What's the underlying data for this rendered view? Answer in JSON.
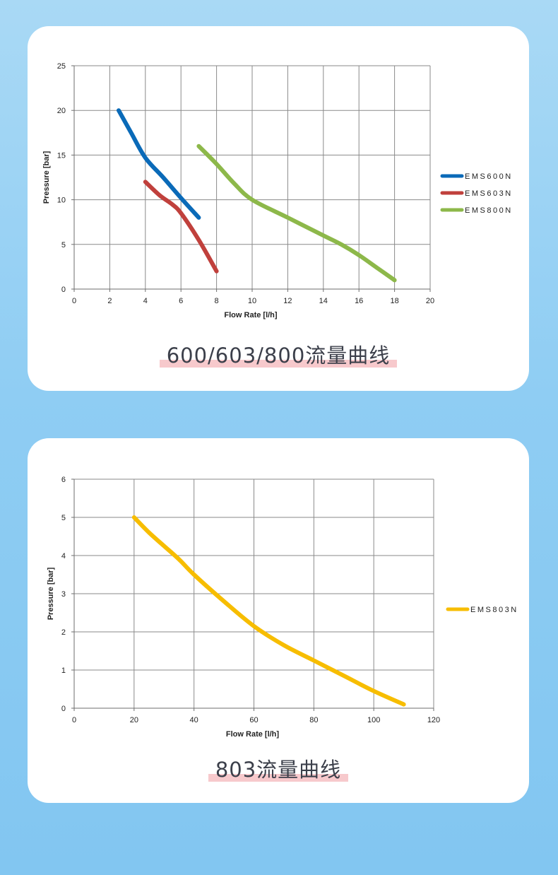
{
  "charts": [
    {
      "caption": "600/603/800流量曲线",
      "colors": {
        "EMS600N": "#0a6ab8",
        "EMS603N": "#c0403c",
        "EMS800N": "#8db84a"
      }
    },
    {
      "caption": "803流量曲线",
      "colors": {
        "EMS803N": "#f7bd00"
      }
    }
  ],
  "chart_data": [
    {
      "type": "line",
      "xlabel": "Flow Rate [l/h]",
      "ylabel": "Pressure [bar]",
      "xlim": [
        0,
        20
      ],
      "ylim": [
        0,
        25
      ],
      "xticks": [
        0,
        2,
        4,
        6,
        8,
        10,
        12,
        14,
        16,
        18,
        20
      ],
      "yticks": [
        0,
        5,
        10,
        15,
        20,
        25
      ],
      "grid": true,
      "legend_position": "right",
      "series": [
        {
          "name": "EMS600N",
          "x": [
            2.5,
            3.2,
            4,
            5,
            6,
            7
          ],
          "y": [
            20,
            17.5,
            14.7,
            12.5,
            10.2,
            8
          ]
        },
        {
          "name": "EMS603N",
          "x": [
            4,
            4.8,
            5.5,
            6,
            7,
            8
          ],
          "y": [
            12,
            10.5,
            9.5,
            8.5,
            5.5,
            2
          ]
        },
        {
          "name": "EMS800N",
          "x": [
            7,
            8,
            9,
            10,
            12,
            14,
            15,
            16,
            17,
            18
          ],
          "y": [
            16,
            14,
            11.8,
            10,
            8,
            6,
            5,
            3.8,
            2.4,
            1
          ]
        }
      ]
    },
    {
      "type": "line",
      "xlabel": "Flow Rate [l/h]",
      "ylabel": "Pressure [bar]",
      "xlim": [
        0,
        120
      ],
      "ylim": [
        0,
        6
      ],
      "xticks": [
        0,
        20,
        40,
        60,
        80,
        100,
        120
      ],
      "yticks": [
        0,
        1,
        2,
        3,
        4,
        5,
        6
      ],
      "grid": true,
      "legend_position": "right",
      "series": [
        {
          "name": "EMS803N",
          "x": [
            20,
            25,
            30,
            35,
            40,
            50,
            60,
            70,
            80,
            90,
            100,
            110
          ],
          "y": [
            5,
            4.6,
            4.25,
            3.9,
            3.5,
            2.8,
            2.15,
            1.65,
            1.25,
            0.85,
            0.45,
            0.1
          ]
        }
      ]
    }
  ]
}
